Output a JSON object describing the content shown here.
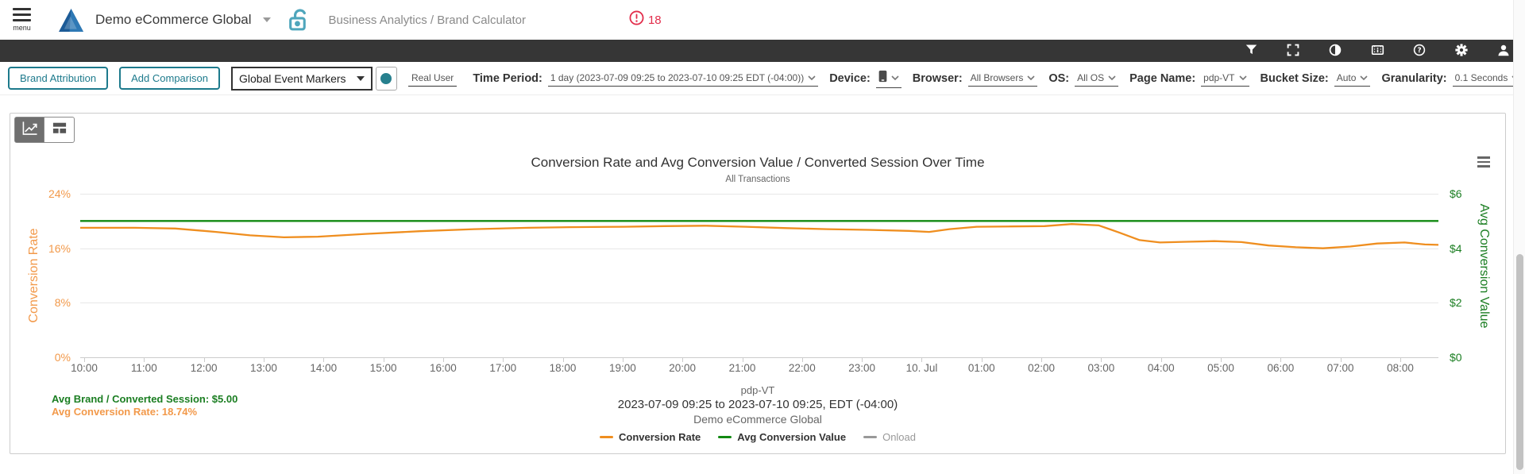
{
  "topbar": {
    "menu_label": "menu",
    "org_name": "Demo eCommerce Global",
    "breadcrumb": "Business Analytics / Brand Calculator",
    "error_count": "18"
  },
  "toolbar_icons": [
    "filter",
    "fullscreen",
    "contrast",
    "info-film",
    "help",
    "settings",
    "account"
  ],
  "filter_bar": {
    "brand_attribution": "Brand Attribution",
    "add_comparison": "Add Comparison",
    "event_markers": "Global Event Markers",
    "real_user": "Real User",
    "time_period_label": "Time Period:",
    "time_period_value": "1 day (2023-07-09 09:25 to 2023-07-10 09:25 EDT (-04:00))",
    "device_label": "Device:",
    "browser_label": "Browser:",
    "browser_value": "All Browsers",
    "os_label": "OS:",
    "os_value": "All OS",
    "page_name_label": "Page Name:",
    "page_name_value": "pdp-VT",
    "bucket_size_label": "Bucket Size:",
    "bucket_size_value": "Auto",
    "granularity_label": "Granularity:",
    "granularity_value": "0.1 Seconds"
  },
  "chart_data": {
    "type": "line",
    "title": "Conversion Rate and Avg Conversion Value / Converted Session Over Time",
    "subtitle": "All Transactions",
    "x_ticks": [
      "10:00",
      "11:00",
      "12:00",
      "13:00",
      "14:00",
      "15:00",
      "16:00",
      "17:00",
      "18:00",
      "19:00",
      "20:00",
      "21:00",
      "22:00",
      "23:00",
      "10. Jul",
      "01:00",
      "02:00",
      "03:00",
      "04:00",
      "05:00",
      "06:00",
      "07:00",
      "08:00"
    ],
    "left_axis": {
      "label": "Conversion Rate",
      "ticks": [
        "0%",
        "8%",
        "16%",
        "24%"
      ],
      "range": [
        0,
        24
      ],
      "unit": "%",
      "color": "#F2994A"
    },
    "right_axis": {
      "label": "Avg Conversion Value",
      "ticks": [
        "$0",
        "$2",
        "$4",
        "$6"
      ],
      "range": [
        0,
        6
      ],
      "unit": "$",
      "color": "#1B7E22"
    },
    "grid": true,
    "legend_position": "bottom",
    "series": [
      {
        "name": "Conversion Rate",
        "axis": "left",
        "color": "#EF8E1F",
        "visible": true,
        "points": [
          [
            0,
            19.0
          ],
          [
            0.04,
            19.0
          ],
          [
            0.07,
            18.9
          ],
          [
            0.1,
            18.4
          ],
          [
            0.125,
            17.9
          ],
          [
            0.15,
            17.6
          ],
          [
            0.175,
            17.7
          ],
          [
            0.21,
            18.1
          ],
          [
            0.25,
            18.5
          ],
          [
            0.29,
            18.8
          ],
          [
            0.33,
            19.0
          ],
          [
            0.36,
            19.1
          ],
          [
            0.4,
            19.15
          ],
          [
            0.43,
            19.25
          ],
          [
            0.46,
            19.3
          ],
          [
            0.49,
            19.15
          ],
          [
            0.52,
            18.95
          ],
          [
            0.55,
            18.8
          ],
          [
            0.58,
            18.7
          ],
          [
            0.61,
            18.55
          ],
          [
            0.625,
            18.4
          ],
          [
            0.64,
            18.8
          ],
          [
            0.66,
            19.15
          ],
          [
            0.685,
            19.2
          ],
          [
            0.71,
            19.25
          ],
          [
            0.73,
            19.55
          ],
          [
            0.75,
            19.35
          ],
          [
            0.765,
            18.3
          ],
          [
            0.78,
            17.2
          ],
          [
            0.795,
            16.85
          ],
          [
            0.815,
            16.95
          ],
          [
            0.835,
            17.05
          ],
          [
            0.855,
            16.9
          ],
          [
            0.875,
            16.4
          ],
          [
            0.895,
            16.15
          ],
          [
            0.915,
            16.0
          ],
          [
            0.935,
            16.25
          ],
          [
            0.955,
            16.7
          ],
          [
            0.975,
            16.85
          ],
          [
            0.99,
            16.55
          ],
          [
            1.0,
            16.5
          ]
        ]
      },
      {
        "name": "Avg Conversion Value",
        "axis": "right",
        "color": "#128912",
        "visible": true,
        "points": [
          [
            0,
            5.0
          ],
          [
            1,
            5.0
          ]
        ]
      },
      {
        "name": "Onload",
        "axis": "left",
        "color": "#999999",
        "visible": false,
        "points": []
      }
    ]
  },
  "summary": {
    "brand": "Avg Brand / Converted Session: $5.00",
    "rate": "Avg Conversion Rate: 18.74%"
  },
  "chart_footer": {
    "page": "pdp-VT",
    "range": "2023-07-09 09:25 to 2023-07-10 09:25, EDT (-04:00)",
    "org": "Demo eCommerce Global"
  },
  "legend": [
    {
      "label": "Conversion Rate",
      "color": "#EF8E1F",
      "enabled": true
    },
    {
      "label": "Avg Conversion Value",
      "color": "#128912",
      "enabled": true
    },
    {
      "label": "Onload",
      "color": "#999999",
      "enabled": false
    }
  ],
  "colors": {
    "accent_teal": "#1D7A8C",
    "toolbar_bg": "#363636",
    "error_red": "#E22D4B",
    "logo_blue": "#1C5B97",
    "lock_teal": "#4FA6BC"
  }
}
